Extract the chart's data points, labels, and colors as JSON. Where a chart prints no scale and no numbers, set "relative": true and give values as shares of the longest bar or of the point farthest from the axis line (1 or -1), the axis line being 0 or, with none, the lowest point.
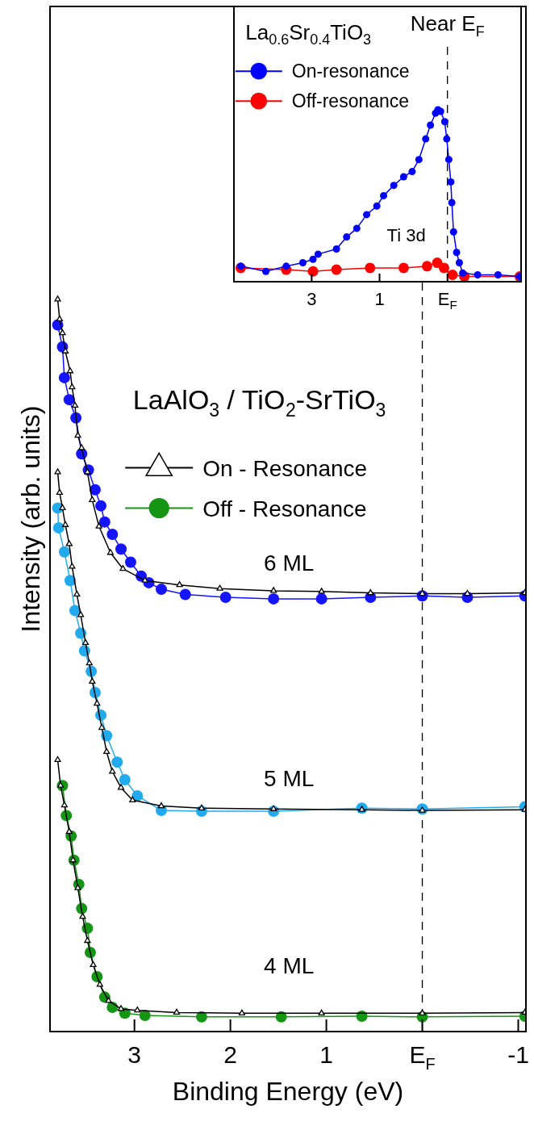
{
  "chart_data": [
    {
      "type": "line",
      "xlabel": "Binding Energy (eV)",
      "ylabel": "Intensity (arb. units)",
      "relative": true,
      "xlim": [
        3.88,
        -1.08
      ],
      "xticks": [
        3,
        2,
        1,
        {
          "value": 0,
          "label": "E$_{F}$"
        },
        -1
      ],
      "legend": "left",
      "grid": false,
      "ref_lines": [
        {
          "axis": "x",
          "value": 0,
          "line_style": "dashed",
          "color": "#000000"
        }
      ],
      "annotations": [
        "LaAlO$_{3}$ / TiO$_{2}$-SrTiO$_{3}$",
        "6 ML",
        "5 ML",
        "4 ML"
      ],
      "series": [
        {
          "color": "#000000",
          "marker": "triangle",
          "x": [
            3.8,
            3.78,
            3.75,
            3.72,
            3.67,
            3.65,
            3.62,
            3.59,
            3.55,
            3.49,
            3.44,
            3.37,
            3.25,
            3.12,
            2.89,
            2.53,
            2.11,
            1.55,
            1.05,
            0.54,
            0.0,
            -0.47,
            -1.07
          ],
          "values": [
            1.0,
            0.973,
            0.954,
            0.929,
            0.902,
            0.88,
            0.855,
            0.814,
            0.797,
            0.764,
            0.726,
            0.69,
            0.654,
            0.632,
            0.616,
            0.61,
            0.605,
            0.602,
            0.601,
            0.599,
            0.598,
            0.598,
            0.599
          ]
        },
        {
          "color": "#1414ff",
          "marker": "circle",
          "x": [
            3.8,
            3.75,
            3.73,
            3.68,
            3.61,
            3.55,
            3.48,
            3.41,
            3.35,
            3.31,
            3.23,
            3.14,
            3.04,
            2.93,
            2.85,
            2.72,
            2.47,
            2.05,
            1.55,
            1.05,
            0.54,
            0.0,
            -0.47,
            -1.07
          ],
          "values": [
            0.965,
            0.935,
            0.893,
            0.863,
            0.838,
            0.789,
            0.767,
            0.74,
            0.718,
            0.696,
            0.679,
            0.659,
            0.641,
            0.622,
            0.613,
            0.604,
            0.597,
            0.593,
            0.591,
            0.591,
            0.593,
            0.595,
            0.593,
            0.595
          ]
        },
        {
          "color": "#000000",
          "marker": "triangle",
          "x": [
            3.8,
            3.78,
            3.75,
            3.72,
            3.68,
            3.65,
            3.6,
            3.56,
            3.51,
            3.47,
            3.44,
            3.39,
            3.34,
            3.29,
            3.23,
            3.14,
            3.02,
            2.72,
            2.3,
            1.55,
            0.63,
            0.0,
            -1.07
          ],
          "values": [
            0.764,
            0.736,
            0.715,
            0.692,
            0.666,
            0.635,
            0.597,
            0.569,
            0.531,
            0.503,
            0.478,
            0.448,
            0.415,
            0.382,
            0.355,
            0.333,
            0.316,
            0.308,
            0.305,
            0.304,
            0.303,
            0.302,
            0.303
          ]
        },
        {
          "color": "#22aaee",
          "marker": "circle",
          "x": [
            3.8,
            3.79,
            3.73,
            3.67,
            3.62,
            3.56,
            3.52,
            3.45,
            3.41,
            3.35,
            3.29,
            3.18,
            3.1,
            2.97,
            2.72,
            2.3,
            1.55,
            0.63,
            0.0,
            -1.07
          ],
          "values": [
            0.715,
            0.688,
            0.655,
            0.616,
            0.575,
            0.544,
            0.52,
            0.492,
            0.463,
            0.432,
            0.404,
            0.368,
            0.344,
            0.322,
            0.302,
            0.301,
            0.301,
            0.305,
            0.304,
            0.307
          ]
        },
        {
          "name": "On - Resonance",
          "color": "#000000",
          "marker": "triangle",
          "x": [
            3.8,
            3.77,
            3.73,
            3.68,
            3.64,
            3.59,
            3.54,
            3.49,
            3.43,
            3.36,
            3.27,
            3.14,
            2.97,
            2.56,
            1.88,
            1.05,
            0.0,
            -1.07
          ],
          "values": [
            0.371,
            0.336,
            0.309,
            0.273,
            0.234,
            0.196,
            0.157,
            0.124,
            0.091,
            0.064,
            0.042,
            0.031,
            0.029,
            0.026,
            0.025,
            0.025,
            0.025,
            0.026
          ]
        },
        {
          "name": "Off - Resonance",
          "color": "#149614",
          "marker": "circle",
          "x": [
            3.75,
            3.71,
            3.66,
            3.63,
            3.58,
            3.55,
            3.49,
            3.46,
            3.39,
            3.31,
            3.23,
            3.1,
            2.89,
            2.3,
            1.47,
            0.63,
            0.0,
            -1.07
          ],
          "values": [
            0.336,
            0.295,
            0.267,
            0.234,
            0.201,
            0.168,
            0.141,
            0.108,
            0.075,
            0.047,
            0.033,
            0.025,
            0.022,
            0.02,
            0.02,
            0.021,
            0.02,
            0.021
          ]
        }
      ]
    },
    {
      "type": "line",
      "title": "La$_{0.6}$Sr$_{0.4}$TiO$_{3}$",
      "relative": true,
      "xlim": [
        5.29,
        -3.17
      ],
      "xticks": [
        3,
        1,
        {
          "value": -1,
          "label": "E$_{F}$"
        }
      ],
      "legend": "top left",
      "grid": false,
      "ref_lines": [
        {
          "axis": "x",
          "value": -1,
          "label": "Near E$_{F}$",
          "line_style": "dashed",
          "color": "#000000"
        }
      ],
      "annotations": [
        "Ti 3d"
      ],
      "series": [
        {
          "name": "On-resonance",
          "color": "#0000ff",
          "marker": "circle",
          "x": [
            5.09,
            4.35,
            3.75,
            3.26,
            2.96,
            2.81,
            2.27,
            1.97,
            1.67,
            1.38,
            1.08,
            0.88,
            0.58,
            0.29,
            0.04,
            -0.16,
            -0.36,
            -0.5,
            -0.65,
            -0.72,
            -0.8,
            -0.92,
            -0.98,
            -1.04,
            -1.1,
            -1.13,
            -1.18,
            -1.27,
            -1.35,
            -1.45,
            -1.89,
            -2.49,
            -3.13
          ],
          "values": [
            0.09,
            0.06,
            0.09,
            0.11,
            0.13,
            0.16,
            0.19,
            0.26,
            0.31,
            0.39,
            0.44,
            0.5,
            0.56,
            0.61,
            0.64,
            0.71,
            0.83,
            0.91,
            0.98,
            1.0,
            0.99,
            0.93,
            0.83,
            0.71,
            0.58,
            0.46,
            0.29,
            0.17,
            0.11,
            0.05,
            0.04,
            0.04,
            0.03
          ]
        },
        {
          "name": "Off-resonance",
          "color": "#ff0000",
          "marker": "circle",
          "x": [
            5.09,
            3.75,
            2.96,
            2.27,
            1.28,
            0.29,
            -0.4,
            -0.7,
            -0.9,
            -1.15,
            -1.5,
            -3.13
          ],
          "values": [
            0.08,
            0.07,
            0.06,
            0.07,
            0.08,
            0.08,
            0.09,
            0.11,
            0.08,
            0.04,
            0.03,
            0.03
          ]
        }
      ]
    }
  ]
}
